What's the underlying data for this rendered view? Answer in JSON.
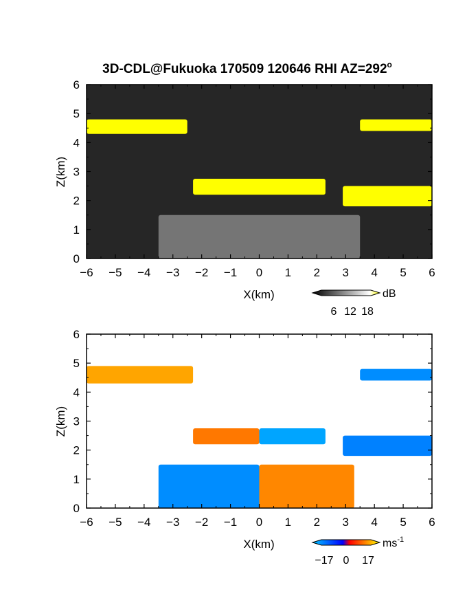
{
  "title": "3D-CDL@Fukuoka 170509 120646 RHI AZ=292",
  "title_sup": "o",
  "chart_data": [
    {
      "type": "heatmap",
      "panel": "top",
      "quantity": "backscatter intensity",
      "xlabel": "X(km)",
      "ylabel": "Z(km)",
      "xlim": [
        -6,
        6
      ],
      "ylim": [
        0,
        6
      ],
      "xticks": [
        -6,
        -5,
        -4,
        -3,
        -2,
        -1,
        0,
        1,
        2,
        3,
        4,
        5,
        6
      ],
      "yticks": [
        0,
        1,
        2,
        3,
        4,
        5,
        6
      ],
      "colorbar": {
        "label": "dB",
        "ticks": [
          "6",
          "12",
          "18"
        ],
        "range": [
          0,
          20
        ]
      },
      "colors": {
        "background": "#262626",
        "high": "#ffff00"
      },
      "features": [
        {
          "name": "upper layer left",
          "x": [
            -6,
            -2.5
          ],
          "z": [
            4.3,
            4.8
          ],
          "db": 20
        },
        {
          "name": "upper layer right",
          "x": [
            3.5,
            6
          ],
          "z": [
            4.4,
            4.8
          ],
          "db": 20
        },
        {
          "name": "middle layer",
          "x": [
            -2.3,
            2.3
          ],
          "z": [
            2.2,
            2.75
          ],
          "db": 20
        },
        {
          "name": "middle layer right",
          "x": [
            2.9,
            6
          ],
          "z": [
            1.8,
            2.5
          ],
          "db": 20
        },
        {
          "name": "boundary layer",
          "x": [
            -3.5,
            3.5
          ],
          "z": [
            0,
            1.5
          ],
          "db": 12
        }
      ]
    },
    {
      "type": "heatmap",
      "panel": "bottom",
      "quantity": "radial velocity",
      "xlabel": "X(km)",
      "ylabel": "Z(km)",
      "xlim": [
        -6,
        6
      ],
      "ylim": [
        0,
        6
      ],
      "xticks": [
        -6,
        -5,
        -4,
        -3,
        -2,
        -1,
        0,
        1,
        2,
        3,
        4,
        5,
        6
      ],
      "yticks": [
        0,
        1,
        2,
        3,
        4,
        5,
        6
      ],
      "colorbar": {
        "label": "ms",
        "label_sup": "-1",
        "ticks": [
          "−17",
          "0",
          "17"
        ],
        "range": [
          -17,
          17
        ]
      },
      "features": [
        {
          "name": "upper layer left",
          "x": [
            -6,
            -2.3
          ],
          "z": [
            4.3,
            4.9
          ],
          "velocity": 11
        },
        {
          "name": "upper layer right",
          "x": [
            3.5,
            6
          ],
          "z": [
            4.4,
            4.8
          ],
          "velocity": -12
        },
        {
          "name": "middle layer left",
          "x": [
            -2.3,
            0
          ],
          "z": [
            2.2,
            2.75
          ],
          "velocity": 8
        },
        {
          "name": "middle layer right",
          "x": [
            0,
            2.3
          ],
          "z": [
            2.2,
            2.75
          ],
          "velocity": -14
        },
        {
          "name": "far right layer",
          "x": [
            2.9,
            6
          ],
          "z": [
            1.8,
            2.5
          ],
          "velocity": -11
        },
        {
          "name": "boundary layer left",
          "x": [
            -3.5,
            0
          ],
          "z": [
            0,
            1.5
          ],
          "velocity": -12
        },
        {
          "name": "boundary layer right",
          "x": [
            0,
            3.3
          ],
          "z": [
            0,
            1.5
          ],
          "velocity": 9
        }
      ]
    }
  ]
}
